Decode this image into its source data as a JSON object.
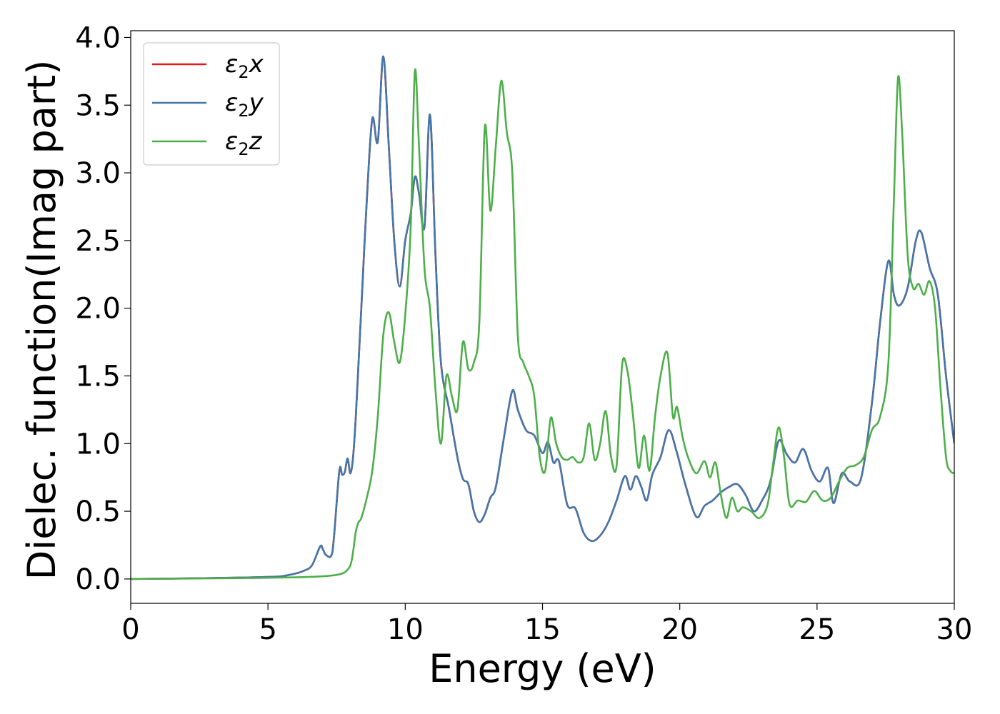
{
  "chart_data": {
    "type": "line",
    "title": "",
    "xlabel": "Energy (eV)",
    "ylabel": "Dielec. function(Imag part)",
    "xlim": [
      0,
      30
    ],
    "ylim": [
      -0.18,
      4.05
    ],
    "xticks": [
      0,
      5,
      10,
      15,
      20,
      25,
      30
    ],
    "xtick_labels": [
      "0",
      "5",
      "10",
      "15",
      "20",
      "25",
      "30"
    ],
    "yticks": [
      0.0,
      0.5,
      1.0,
      1.5,
      2.0,
      2.5,
      3.0,
      3.5,
      4.0
    ],
    "ytick_labels": [
      "0.0",
      "0.5",
      "1.0",
      "1.5",
      "2.0",
      "2.5",
      "3.0",
      "3.5",
      "4.0"
    ],
    "grid": false,
    "legend_position": "top-left",
    "series": [
      {
        "name": "ε₂x",
        "legend_base": "ε",
        "legend_sub": "2",
        "legend_tail": "x",
        "color": "#e41a1c",
        "x": [
          0,
          2,
          4,
          5,
          5.5,
          6,
          6.3,
          6.6,
          6.9,
          7.0,
          7.1,
          7.3,
          7.4,
          7.6,
          7.7,
          7.8,
          7.9,
          8.0,
          8.1,
          8.2,
          8.3,
          8.4,
          8.6,
          8.8,
          9.0,
          9.2,
          9.4,
          9.6,
          9.8,
          10.0,
          10.2,
          10.35,
          10.5,
          10.7,
          10.9,
          11.1,
          11.3,
          11.6,
          11.9,
          12.1,
          12.3,
          12.5,
          12.7,
          12.9,
          13.1,
          13.3,
          13.6,
          13.9,
          14.1,
          14.4,
          14.7,
          15.0,
          15.2,
          15.4,
          15.6,
          15.9,
          16.2,
          16.5,
          16.8,
          17.1,
          17.4,
          17.7,
          18.0,
          18.2,
          18.4,
          18.6,
          18.8,
          19.0,
          19.3,
          19.6,
          19.9,
          20.2,
          20.6,
          20.9,
          21.2,
          21.5,
          21.8,
          22.1,
          22.4,
          22.7,
          23.0,
          23.3,
          23.6,
          23.9,
          24.2,
          24.5,
          24.8,
          25.1,
          25.4,
          25.6,
          25.9,
          26.2,
          26.6,
          27.0,
          27.3,
          27.6,
          27.8,
          28.0,
          28.3,
          28.6,
          28.8,
          29.1,
          29.4,
          29.7,
          30.0
        ],
        "y": [
          0.0,
          0.004,
          0.01,
          0.015,
          0.02,
          0.04,
          0.06,
          0.1,
          0.24,
          0.22,
          0.18,
          0.17,
          0.3,
          0.8,
          0.77,
          0.79,
          0.89,
          0.78,
          0.9,
          1.2,
          1.6,
          2.0,
          2.8,
          3.4,
          3.23,
          3.86,
          3.2,
          2.5,
          2.16,
          2.5,
          2.7,
          2.97,
          2.85,
          2.6,
          3.43,
          2.4,
          1.6,
          1.25,
          0.9,
          0.74,
          0.7,
          0.5,
          0.42,
          0.48,
          0.6,
          0.68,
          1.05,
          1.39,
          1.25,
          1.1,
          1.06,
          0.93,
          1.01,
          0.86,
          0.87,
          0.55,
          0.52,
          0.34,
          0.28,
          0.32,
          0.42,
          0.58,
          0.76,
          0.66,
          0.76,
          0.68,
          0.58,
          0.77,
          0.9,
          1.1,
          0.93,
          0.7,
          0.46,
          0.54,
          0.58,
          0.64,
          0.68,
          0.7,
          0.62,
          0.5,
          0.58,
          0.72,
          1.02,
          0.92,
          0.86,
          0.96,
          0.8,
          0.72,
          0.82,
          0.56,
          0.78,
          0.72,
          0.74,
          1.3,
          1.9,
          2.35,
          2.1,
          2.02,
          2.15,
          2.5,
          2.56,
          2.3,
          2.1,
          1.5,
          1.0
        ]
      },
      {
        "name": "ε₂y",
        "legend_base": "ε",
        "legend_sub": "2",
        "legend_tail": "y",
        "color": "#4477aa",
        "x": [
          0,
          2,
          4,
          5,
          5.5,
          6,
          6.3,
          6.6,
          6.9,
          7.0,
          7.1,
          7.3,
          7.4,
          7.6,
          7.7,
          7.8,
          7.9,
          8.0,
          8.1,
          8.2,
          8.3,
          8.4,
          8.6,
          8.8,
          9.0,
          9.2,
          9.4,
          9.6,
          9.8,
          10.0,
          10.2,
          10.35,
          10.5,
          10.7,
          10.9,
          11.1,
          11.3,
          11.6,
          11.9,
          12.1,
          12.3,
          12.5,
          12.7,
          12.9,
          13.1,
          13.3,
          13.6,
          13.9,
          14.1,
          14.4,
          14.7,
          15.0,
          15.2,
          15.4,
          15.6,
          15.9,
          16.2,
          16.5,
          16.8,
          17.1,
          17.4,
          17.7,
          18.0,
          18.2,
          18.4,
          18.6,
          18.8,
          19.0,
          19.3,
          19.6,
          19.9,
          20.2,
          20.6,
          20.9,
          21.2,
          21.5,
          21.8,
          22.1,
          22.4,
          22.7,
          23.0,
          23.3,
          23.6,
          23.9,
          24.2,
          24.5,
          24.8,
          25.1,
          25.4,
          25.6,
          25.9,
          26.2,
          26.6,
          27.0,
          27.3,
          27.6,
          27.8,
          28.0,
          28.3,
          28.6,
          28.8,
          29.1,
          29.4,
          29.7,
          30.0
        ],
        "y": [
          0.0,
          0.004,
          0.01,
          0.015,
          0.02,
          0.04,
          0.06,
          0.1,
          0.24,
          0.22,
          0.18,
          0.17,
          0.3,
          0.8,
          0.77,
          0.79,
          0.89,
          0.78,
          0.9,
          1.2,
          1.6,
          2.0,
          2.8,
          3.4,
          3.23,
          3.86,
          3.2,
          2.5,
          2.16,
          2.5,
          2.7,
          2.97,
          2.85,
          2.6,
          3.43,
          2.4,
          1.6,
          1.25,
          0.9,
          0.74,
          0.7,
          0.5,
          0.42,
          0.48,
          0.6,
          0.68,
          1.05,
          1.39,
          1.25,
          1.1,
          1.06,
          0.93,
          1.01,
          0.86,
          0.87,
          0.55,
          0.52,
          0.34,
          0.28,
          0.32,
          0.42,
          0.58,
          0.76,
          0.66,
          0.76,
          0.68,
          0.58,
          0.77,
          0.9,
          1.1,
          0.93,
          0.7,
          0.46,
          0.54,
          0.58,
          0.64,
          0.68,
          0.7,
          0.62,
          0.5,
          0.58,
          0.72,
          1.02,
          0.92,
          0.86,
          0.96,
          0.8,
          0.72,
          0.82,
          0.56,
          0.78,
          0.72,
          0.74,
          1.3,
          1.9,
          2.35,
          2.1,
          2.02,
          2.15,
          2.5,
          2.56,
          2.3,
          2.1,
          1.5,
          1.0
        ]
      },
      {
        "name": "ε₂z",
        "legend_base": "ε",
        "legend_sub": "2",
        "legend_tail": "z",
        "color": "#4daf4a",
        "x": [
          0,
          2,
          4,
          6,
          7,
          7.5,
          7.8,
          8.0,
          8.1,
          8.2,
          8.3,
          8.4,
          8.6,
          8.8,
          9.0,
          9.2,
          9.4,
          9.6,
          9.8,
          10.0,
          10.2,
          10.35,
          10.5,
          10.7,
          10.9,
          11.1,
          11.3,
          11.5,
          11.7,
          11.9,
          12.1,
          12.3,
          12.5,
          12.7,
          12.9,
          13.1,
          13.3,
          13.5,
          13.7,
          13.9,
          14.1,
          14.3,
          14.5,
          14.7,
          14.9,
          15.1,
          15.3,
          15.5,
          15.7,
          15.9,
          16.1,
          16.3,
          16.5,
          16.7,
          16.9,
          17.1,
          17.3,
          17.5,
          17.7,
          17.9,
          18.1,
          18.3,
          18.5,
          18.7,
          18.9,
          19.1,
          19.3,
          19.55,
          19.75,
          19.9,
          20.1,
          20.3,
          20.6,
          20.9,
          21.1,
          21.3,
          21.5,
          21.7,
          21.9,
          22.1,
          22.3,
          22.6,
          22.9,
          23.2,
          23.4,
          23.6,
          23.8,
          24.0,
          24.3,
          24.6,
          24.9,
          25.2,
          25.5,
          25.8,
          26.1,
          26.4,
          26.7,
          27.0,
          27.3,
          27.6,
          27.8,
          27.95,
          28.1,
          28.3,
          28.5,
          28.7,
          28.9,
          29.1,
          29.3,
          29.5,
          29.7,
          29.85,
          30.0
        ],
        "y": [
          0.0,
          0.003,
          0.006,
          0.012,
          0.02,
          0.03,
          0.05,
          0.1,
          0.2,
          0.35,
          0.42,
          0.45,
          0.6,
          0.8,
          1.2,
          1.8,
          1.97,
          1.75,
          1.6,
          1.95,
          2.6,
          3.75,
          3.2,
          2.3,
          2.0,
          1.4,
          1.0,
          1.5,
          1.35,
          1.25,
          1.75,
          1.55,
          1.6,
          1.9,
          3.34,
          2.72,
          3.2,
          3.68,
          3.3,
          3.0,
          1.8,
          1.6,
          1.5,
          1.35,
          0.9,
          0.8,
          1.19,
          1.0,
          0.9,
          0.88,
          0.9,
          0.86,
          0.9,
          1.15,
          0.88,
          1.0,
          1.24,
          0.9,
          0.84,
          1.58,
          1.53,
          1.2,
          0.82,
          1.06,
          0.8,
          1.2,
          1.5,
          1.67,
          1.2,
          1.27,
          1.05,
          0.9,
          0.78,
          0.87,
          0.75,
          0.86,
          0.62,
          0.45,
          0.6,
          0.5,
          0.53,
          0.5,
          0.45,
          0.55,
          0.85,
          1.12,
          0.9,
          0.55,
          0.58,
          0.57,
          0.65,
          0.58,
          0.6,
          0.72,
          0.82,
          0.84,
          0.9,
          1.1,
          1.2,
          1.6,
          2.8,
          3.7,
          3.3,
          2.4,
          2.15,
          2.18,
          2.1,
          2.2,
          2.0,
          1.4,
          0.9,
          0.8,
          0.78
        ]
      }
    ]
  }
}
